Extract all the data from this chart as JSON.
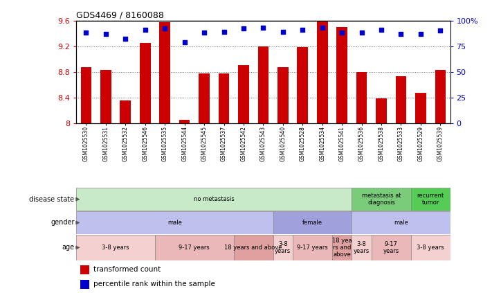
{
  "title": "GDS4469 / 8160088",
  "samples": [
    "GSM1025530",
    "GSM1025531",
    "GSM1025532",
    "GSM1025546",
    "GSM1025535",
    "GSM1025544",
    "GSM1025545",
    "GSM1025537",
    "GSM1025542",
    "GSM1025543",
    "GSM1025540",
    "GSM1025528",
    "GSM1025534",
    "GSM1025541",
    "GSM1025536",
    "GSM1025538",
    "GSM1025533",
    "GSM1025529",
    "GSM1025539"
  ],
  "transformed_count": [
    8.87,
    8.83,
    8.35,
    9.25,
    9.57,
    8.05,
    8.77,
    8.77,
    8.9,
    9.2,
    8.87,
    9.18,
    9.6,
    9.5,
    8.8,
    8.38,
    8.73,
    8.47,
    8.83
  ],
  "percentile_rank": [
    88,
    87,
    82,
    91,
    92,
    79,
    88,
    89,
    92,
    93,
    89,
    91,
    93,
    88,
    88,
    91,
    87,
    87,
    90
  ],
  "ylim_left": [
    8.0,
    9.6
  ],
  "ylim_right": [
    0,
    100
  ],
  "bar_color": "#cc0000",
  "dot_color": "#0000cc",
  "yticks_left": [
    8.0,
    8.4,
    8.8,
    9.2,
    9.6
  ],
  "ytick_labels_left": [
    "8",
    "8.4",
    "8.8",
    "9.2",
    "9.6"
  ],
  "yticks_right": [
    0,
    25,
    50,
    75,
    100
  ],
  "ytick_labels_right": [
    "0",
    "25",
    "50",
    "75",
    "100%"
  ],
  "disease_state_groups": [
    {
      "label": "no metastasis",
      "start": 0,
      "end": 14,
      "color": "#c8eac8"
    },
    {
      "label": "metastasis at\ndiagnosis",
      "start": 14,
      "end": 17,
      "color": "#7acc7a"
    },
    {
      "label": "recurrent\ntumor",
      "start": 17,
      "end": 19,
      "color": "#55cc55"
    }
  ],
  "gender_groups": [
    {
      "label": "male",
      "start": 0,
      "end": 10,
      "color": "#c0c0ee"
    },
    {
      "label": "female",
      "start": 10,
      "end": 14,
      "color": "#a0a0dd"
    },
    {
      "label": "male",
      "start": 14,
      "end": 19,
      "color": "#c0c0ee"
    }
  ],
  "age_groups": [
    {
      "label": "3-8 years",
      "start": 0,
      "end": 4,
      "color": "#f5d0d0"
    },
    {
      "label": "9-17 years",
      "start": 4,
      "end": 8,
      "color": "#eab8b8"
    },
    {
      "label": "18 years and above",
      "start": 8,
      "end": 10,
      "color": "#e0a0a0"
    },
    {
      "label": "3-8\nyears",
      "start": 10,
      "end": 11,
      "color": "#f5d0d0"
    },
    {
      "label": "9-17 years",
      "start": 11,
      "end": 13,
      "color": "#eab8b8"
    },
    {
      "label": "18 yea\nrs and\nabove",
      "start": 13,
      "end": 14,
      "color": "#e0a0a0"
    },
    {
      "label": "3-8\nyears",
      "start": 14,
      "end": 15,
      "color": "#f5d0d0"
    },
    {
      "label": "9-17\nyears",
      "start": 15,
      "end": 17,
      "color": "#eab8b8"
    },
    {
      "label": "3-8 years",
      "start": 17,
      "end": 19,
      "color": "#f5d0d0"
    }
  ],
  "row_labels": [
    "disease state",
    "gender",
    "age"
  ],
  "legend_items": [
    {
      "color": "#cc0000",
      "label": "transformed count",
      "marker": "square"
    },
    {
      "color": "#0000cc",
      "label": "percentile rank within the sample",
      "marker": "square"
    }
  ],
  "background_color": "#ffffff"
}
